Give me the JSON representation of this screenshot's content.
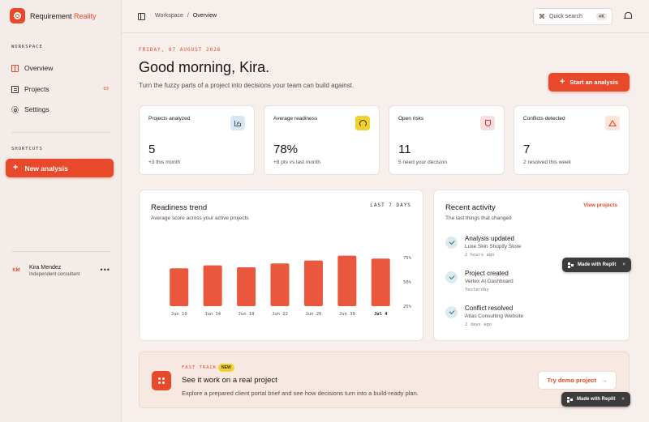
{
  "brand": {
    "name_prefix": "Requirement",
    "name_accent": "Reality"
  },
  "sidebar": {
    "workspace_label": "WORKSPACE",
    "items": [
      {
        "label": "Overview",
        "icon": "grid-icon",
        "active": true
      },
      {
        "label": "Projects",
        "icon": "document-icon",
        "badge": "03"
      },
      {
        "label": "Settings",
        "icon": "gear-icon"
      }
    ],
    "shortcuts_label": "SHORTCUTS",
    "new_analysis_label": "New analysis",
    "user": {
      "initials": "KM",
      "name": "Kira Mendez",
      "role": "Independent consultant",
      "more": "•••"
    }
  },
  "topbar": {
    "breadcrumb": [
      "Workspace",
      "/",
      "Overview"
    ],
    "search": {
      "glyph": "⌘",
      "placeholder": "Quick search",
      "shortcut": "⌘K"
    }
  },
  "header": {
    "date": "FRIDAY, 07 AUGUST 2026",
    "greeting": "Good morning, Kira.",
    "subtitle": "Turn the fuzzy parts of a project into decisions your team can build against.",
    "start_button": "Start an analysis"
  },
  "stats": [
    {
      "title": "Projects analyzed",
      "value": "5",
      "sub": "+3 this month",
      "icon": "chart-icon"
    },
    {
      "title": "Average readiness",
      "value": "78%",
      "sub": "+8 pts vs last month",
      "icon": "gauge-icon"
    },
    {
      "title": "Open risks",
      "value": "11",
      "sub": "5 need your decision",
      "icon": "shield-icon"
    },
    {
      "title": "Conflicts detected",
      "value": "7",
      "sub": "2 resolved this week",
      "icon": "warning-icon"
    }
  ],
  "trend": {
    "title": "Readiness trend",
    "subtitle": "Average score across your active projects",
    "range": "LAST 7 DAYS"
  },
  "chart_data": {
    "type": "bar",
    "categories": [
      "Jun 10",
      "Jun 14",
      "Jun 18",
      "Jun 22",
      "Jun 26",
      "Jun 30",
      "Jul 4"
    ],
    "values": [
      64,
      67,
      65,
      69,
      72,
      77,
      74
    ],
    "ylim": [
      25,
      75
    ],
    "yticks": [
      "75%",
      "50%",
      "25%"
    ],
    "highlight_category": "Jul 4",
    "color": "#e9583c",
    "grid": false
  },
  "activity": {
    "title": "Recent activity",
    "subtitle": "The last things that changed",
    "link": "View projects",
    "items": [
      {
        "name": "Analysis updated",
        "desc": "Luxe Skin Shopify Store",
        "time": "2 hours ago"
      },
      {
        "name": "Project created",
        "desc": "Vertex AI Dashboard",
        "time": "Yesterday"
      },
      {
        "name": "Conflict resolved",
        "desc": "Atlas Consulting Website",
        "time": "2 days ago"
      }
    ]
  },
  "replit_badge": {
    "label": "Made with Replit",
    "close": "×"
  },
  "fast_track": {
    "label": "FAST TRACK",
    "badge": "NEW",
    "title": "See it work on a real project",
    "desc": "Explore a prepared client portal brief and see how decisions turn into a build-ready plan.",
    "button": "Try demo project",
    "arrow": "→"
  },
  "colors": {
    "accent": "#e8492a",
    "background": "#f6efec",
    "card": "#ffffff"
  }
}
